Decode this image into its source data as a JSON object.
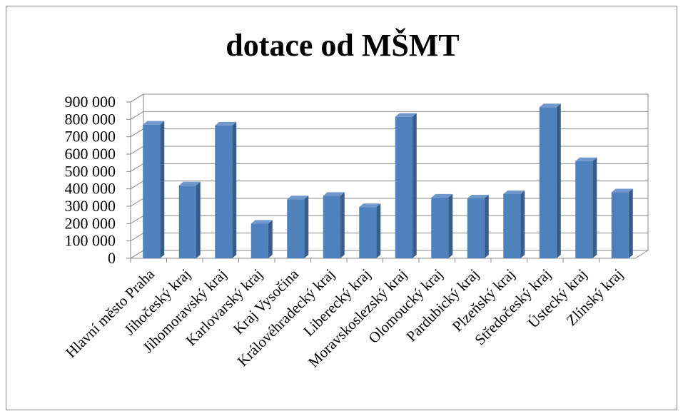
{
  "chart_data": {
    "type": "bar",
    "title": "dotace od MŠMT",
    "categories": [
      "Hlavní město Praha",
      "Jihočeský kraj",
      "Jihomoravský kraj",
      "Karlovarský kraj",
      "Kraj Vysočina",
      "Královéhradecký kraj",
      "Liberecký kraj",
      "Moravskoslezský kraj",
      "Olomoucký kraj",
      "Pardubický kraj",
      "Plzeňský kraj",
      "Středočeský kraj",
      "Ústecký kraj",
      "Zlínský kraj"
    ],
    "values": [
      770000,
      420000,
      765000,
      200000,
      340000,
      360000,
      295000,
      815000,
      350000,
      345000,
      370000,
      870000,
      560000,
      380000
    ],
    "color": "#4f81bd",
    "ylim": [
      0,
      900000
    ],
    "yticks": [
      0,
      {
        "value": 100000,
        "label": "100 000"
      },
      {
        "value": 200000,
        "label": "200 000"
      },
      {
        "value": 300000,
        "label": "300 000"
      },
      {
        "value": 400000,
        "label": "400 000"
      },
      {
        "value": 500000,
        "label": "500 000"
      },
      {
        "value": 600000,
        "label": "600 000"
      },
      {
        "value": 700000,
        "label": "700 000"
      },
      {
        "value": 800000,
        "label": "800 000"
      },
      {
        "value": 900000,
        "label": "900 000"
      }
    ],
    "grid": true
  }
}
